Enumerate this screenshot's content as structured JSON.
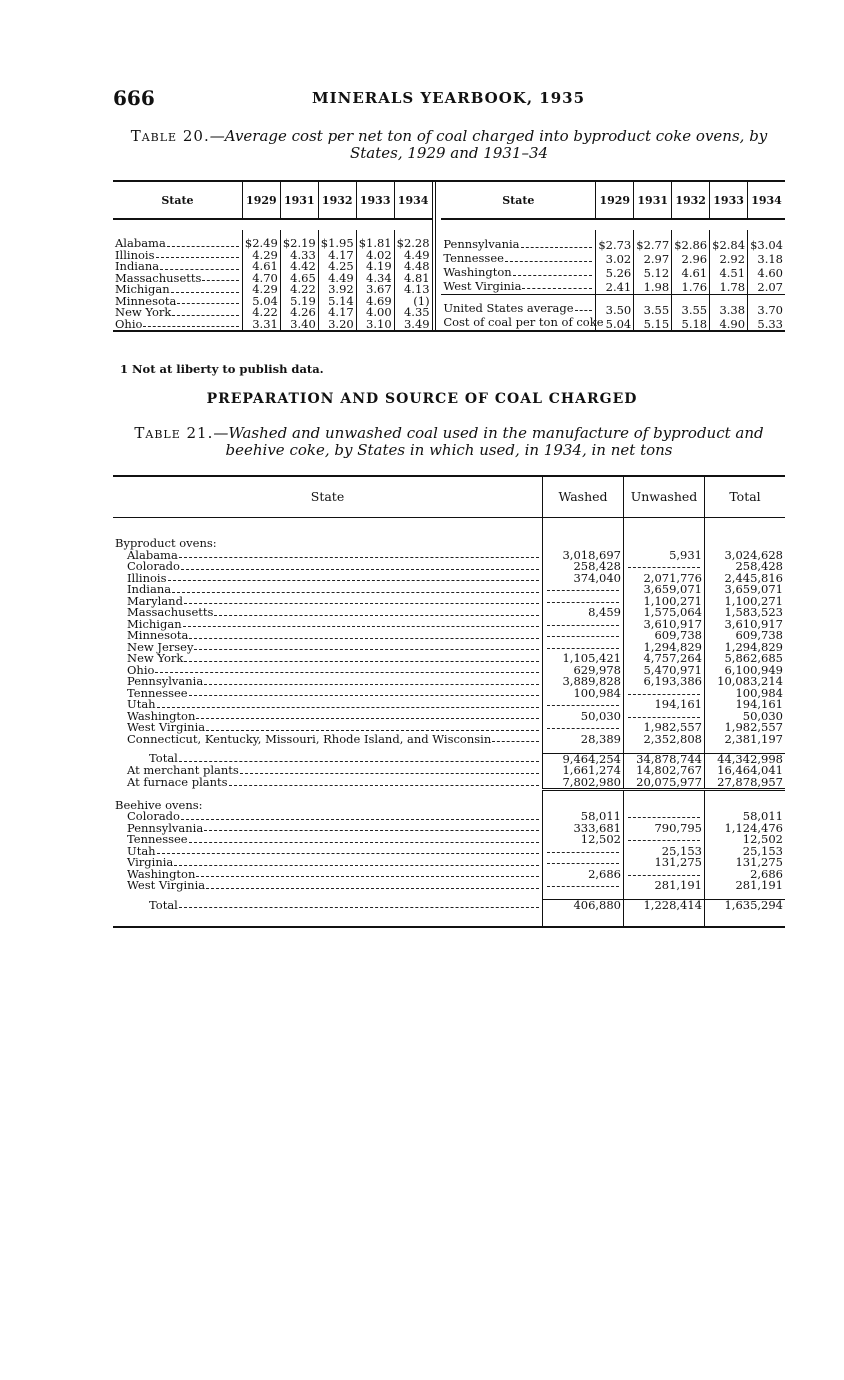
{
  "page": {
    "number": "666",
    "running_head": "MINERALS YEARBOOK, 1935"
  },
  "table20": {
    "label": "Table 20.",
    "title_line1": "—Average cost per net ton of coal charged into byproduct coke ovens, by",
    "title_line2": "States, 1929 and 1931–34",
    "columns": [
      "State",
      "1929",
      "1931",
      "1932",
      "1933",
      "1934"
    ],
    "left_rows": [
      {
        "state": "Alabama",
        "values": [
          "$2.49",
          "$2.19",
          "$1.95",
          "$1.81",
          "$2.28"
        ]
      },
      {
        "state": "Illinois",
        "values": [
          "4.29",
          "4.33",
          "4.17",
          "4.02",
          "4.49"
        ]
      },
      {
        "state": "Indiana",
        "values": [
          "4.61",
          "4.42",
          "4.25",
          "4.19",
          "4.48"
        ]
      },
      {
        "state": "Massachusetts",
        "values": [
          "4.70",
          "4.65",
          "4.49",
          "4.34",
          "4.81"
        ]
      },
      {
        "state": "Michigan",
        "values": [
          "4.29",
          "4.22",
          "3.92",
          "3.67",
          "4.13"
        ]
      },
      {
        "state": "Minnesota",
        "values": [
          "5.04",
          "5.19",
          "5.14",
          "4.69",
          "(1)"
        ]
      },
      {
        "state": "New York",
        "values": [
          "4.22",
          "4.26",
          "4.17",
          "4.00",
          "4.35"
        ]
      },
      {
        "state": "Ohio",
        "values": [
          "3.31",
          "3.40",
          "3.20",
          "3.10",
          "3.49"
        ]
      }
    ],
    "right_rows": [
      {
        "state": "Pennsylvania",
        "values": [
          "$2.73",
          "$2.77",
          "$2.86",
          "$2.84",
          "$3.04"
        ]
      },
      {
        "state": "Tennessee",
        "values": [
          "3.02",
          "2.97",
          "2.96",
          "2.92",
          "3.18"
        ]
      },
      {
        "state": "Washington",
        "values": [
          "5.26",
          "5.12",
          "4.61",
          "4.51",
          "4.60"
        ]
      },
      {
        "state": "West Virginia",
        "values": [
          "2.41",
          "1.98",
          "1.76",
          "1.78",
          "2.07"
        ]
      },
      {
        "state": "United States average",
        "values": [
          "3.50",
          "3.55",
          "3.55",
          "3.38",
          "3.70"
        ]
      },
      {
        "state": "Cost of coal per ton of coke",
        "values": [
          "5.04",
          "5.15",
          "5.18",
          "4.90",
          "5.33"
        ]
      }
    ],
    "footnote": "1 Not at liberty to publish data."
  },
  "section_heading": "PREPARATION AND SOURCE OF COAL CHARGED",
  "table21": {
    "label": "Table 21.",
    "title_line1": "—Washed and unwashed coal used in the manufacture of byproduct and",
    "title_line2": "beehive coke, by States in which used, in 1934, in net tons",
    "columns": [
      "State",
      "Washed",
      "Unwashed",
      "Total"
    ],
    "groups": [
      {
        "heading": "Byproduct ovens:",
        "rows": [
          {
            "state": "Alabama",
            "washed": "3,018,697",
            "unwashed": "5,931",
            "total": "3,024,628"
          },
          {
            "state": "Colorado",
            "washed": "258,428",
            "unwashed": "",
            "total": "258,428"
          },
          {
            "state": "Illinois",
            "washed": "374,040",
            "unwashed": "2,071,776",
            "total": "2,445,816"
          },
          {
            "state": "Indiana",
            "washed": "",
            "unwashed": "3,659,071",
            "total": "3,659,071"
          },
          {
            "state": "Maryland",
            "washed": "",
            "unwashed": "1,100,271",
            "total": "1,100,271"
          },
          {
            "state": "Massachusetts",
            "washed": "8,459",
            "unwashed": "1,575,064",
            "total": "1,583,523"
          },
          {
            "state": "Michigan",
            "washed": "",
            "unwashed": "3,610,917",
            "total": "3,610,917"
          },
          {
            "state": "Minnesota",
            "washed": "",
            "unwashed": "609,738",
            "total": "609,738"
          },
          {
            "state": "New Jersey",
            "washed": "",
            "unwashed": "1,294,829",
            "total": "1,294,829"
          },
          {
            "state": "New York",
            "washed": "1,105,421",
            "unwashed": "4,757,264",
            "total": "5,862,685"
          },
          {
            "state": "Ohio",
            "washed": "629,978",
            "unwashed": "5,470,971",
            "total": "6,100,949"
          },
          {
            "state": "Pennsylvania",
            "washed": "3,889,828",
            "unwashed": "6,193,386",
            "total": "10,083,214"
          },
          {
            "state": "Tennessee",
            "washed": "100,984",
            "unwashed": "",
            "total": "100,984"
          },
          {
            "state": "Utah",
            "washed": "",
            "unwashed": "194,161",
            "total": "194,161"
          },
          {
            "state": "Washington",
            "washed": "50,030",
            "unwashed": "",
            "total": "50,030"
          },
          {
            "state": "West Virginia",
            "washed": "",
            "unwashed": "1,982,557",
            "total": "1,982,557"
          },
          {
            "state": "Connecticut, Kentucky, Missouri, Rhode Island, and Wisconsin",
            "washed": "28,389",
            "unwashed": "2,352,808",
            "total": "2,381,197"
          }
        ],
        "totals": [
          {
            "state": "Total",
            "washed": "9,464,254",
            "unwashed": "34,878,744",
            "total": "44,342,998"
          },
          {
            "state": "At merchant plants",
            "washed": "1,661,274",
            "unwashed": "14,802,767",
            "total": "16,464,041"
          },
          {
            "state": "At furnace plants",
            "washed": "7,802,980",
            "unwashed": "20,075,977",
            "total": "27,878,957"
          }
        ]
      },
      {
        "heading": "Beehive ovens:",
        "rows": [
          {
            "state": "Colorado",
            "washed": "58,011",
            "unwashed": "",
            "total": "58,011"
          },
          {
            "state": "Pennsylvania",
            "washed": "333,681",
            "unwashed": "790,795",
            "total": "1,124,476"
          },
          {
            "state": "Tennessee",
            "washed": "12,502",
            "unwashed": "",
            "total": "12,502"
          },
          {
            "state": "Utah",
            "washed": "",
            "unwashed": "25,153",
            "total": "25,153"
          },
          {
            "state": "Virginia",
            "washed": "",
            "unwashed": "131,275",
            "total": "131,275"
          },
          {
            "state": "Washington",
            "washed": "2,686",
            "unwashed": "",
            "total": "2,686"
          },
          {
            "state": "West Virginia",
            "washed": "",
            "unwashed": "281,191",
            "total": "281,191"
          }
        ],
        "totals": [
          {
            "state": "Total",
            "washed": "406,880",
            "unwashed": "1,228,414",
            "total": "1,635,294"
          }
        ]
      }
    ]
  }
}
